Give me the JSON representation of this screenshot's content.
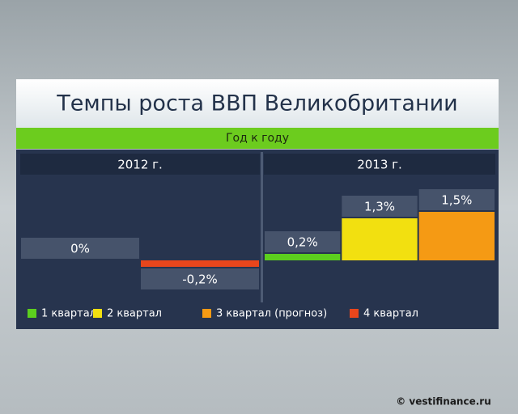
{
  "chart_data": {
    "type": "bar",
    "title": "Темпы роста ВВП Великобритании",
    "subtitle": "Год к году",
    "categories": [
      "2012 г.",
      "2013 г."
    ],
    "series": [
      {
        "name": "1 квартал",
        "color": "#5ccf1e",
        "values": [
          null,
          0.2
        ],
        "value_labels": [
          null,
          "0,2%"
        ]
      },
      {
        "name": "2 квартал",
        "color": "#f2e010",
        "values": [
          null,
          1.3
        ],
        "value_labels": [
          null,
          "1,3%"
        ]
      },
      {
        "name": "3 квартал (прогноз)",
        "color": "#f59a14",
        "values": [
          0,
          1.5
        ],
        "value_labels": [
          "0%",
          "1,5%"
        ]
      },
      {
        "name": "4 квартал",
        "color": "#e8461c",
        "values": [
          -0.2,
          null
        ],
        "value_labels": [
          "-0,2%",
          null
        ]
      }
    ],
    "watermark": "© vestifinance.ru"
  }
}
